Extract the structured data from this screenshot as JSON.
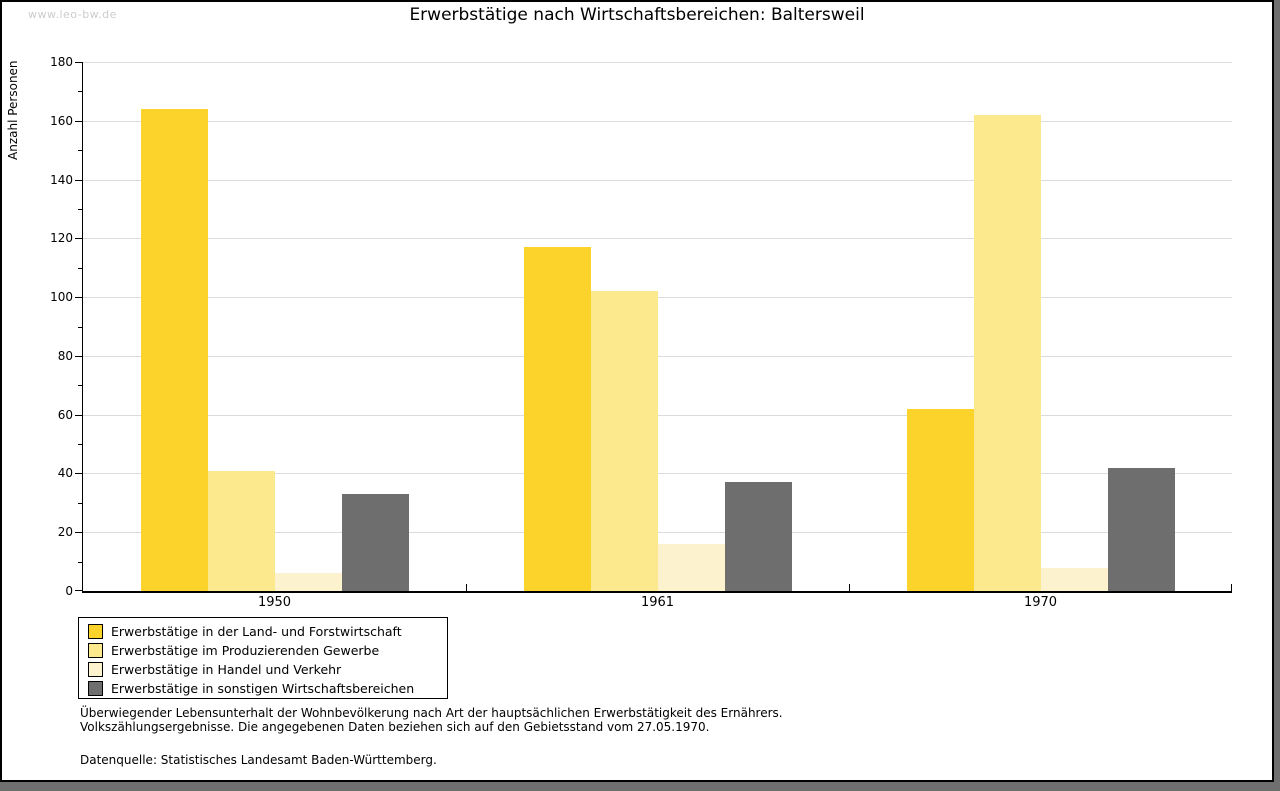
{
  "watermark": "www.leo-bw.de",
  "chart_data": {
    "type": "bar",
    "title": "Erwerbstätige nach Wirtschaftsbereichen: Baltersweil",
    "xlabel": "",
    "ylabel": "Anzahl Personen",
    "categories": [
      "1950",
      "1961",
      "1970"
    ],
    "series": [
      {
        "name": "Erwerbstätige in der Land- und Forstwirtschaft",
        "color": "#FBD32B",
        "values": [
          164,
          117,
          62
        ]
      },
      {
        "name": "Erwerbstätige im Produzierenden Gewerbe",
        "color": "#FCE88D",
        "values": [
          41,
          102,
          162
        ]
      },
      {
        "name": "Erwerbstätige in Handel und Verkehr",
        "color": "#FCF3CE",
        "values": [
          6,
          16,
          8
        ]
      },
      {
        "name": "Erwerbstätige in sonstigen Wirtschaftsbereichen",
        "color": "#6E6E6E",
        "values": [
          33,
          37,
          42
        ]
      }
    ],
    "ylim": [
      0,
      180
    ],
    "ytick_step": 20,
    "minor_tick_step": 10,
    "grid": "horizontal",
    "legend_position": "bottom-left",
    "gridline_color": "#dcdcdc"
  },
  "footnotes": {
    "line1": "Überwiegender Lebensunterhalt der Wohnbevölkerung nach Art der hauptsächlichen Erwerbstätigkeit des Ernährers.",
    "line2": "Volkszählungsergebnisse. Die angegebenen Daten beziehen sich auf den Gebietsstand vom 27.05.1970.",
    "source": "Datenquelle: Statistisches Landesamt Baden-Württemberg."
  }
}
